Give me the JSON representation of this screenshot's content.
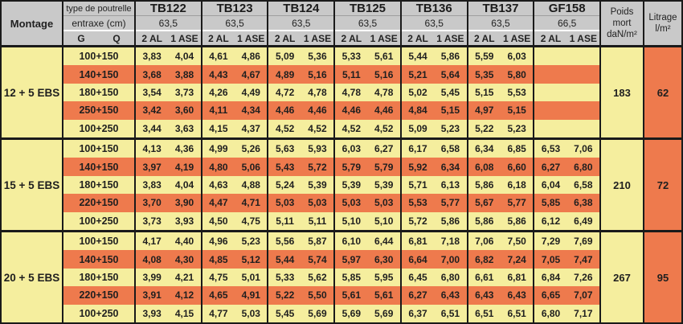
{
  "header": {
    "montage": "Montage",
    "type_poutrelle": "type de poutrelle",
    "entraxe": "entraxe (cm)",
    "g": "G",
    "q": "Q",
    "col_2al": "2 AL",
    "col_1ase": "1 ASE",
    "poids_lines": [
      "Poids",
      "mort",
      "daN/m²"
    ],
    "litrage_lines": [
      "Litrage",
      "l/m²"
    ]
  },
  "beams": [
    {
      "name": "TB122",
      "entraxe": "63,5"
    },
    {
      "name": "TB123",
      "entraxe": "63,5"
    },
    {
      "name": "TB124",
      "entraxe": "63,5"
    },
    {
      "name": "TB125",
      "entraxe": "63,5"
    },
    {
      "name": "TB136",
      "entraxe": "63,5"
    },
    {
      "name": "TB137",
      "entraxe": "63,5"
    },
    {
      "name": "GF158",
      "entraxe": "66,5"
    }
  ],
  "blocks": [
    {
      "montage": "12 + 5 EBS",
      "poids": "183",
      "litrage": "62",
      "rows": [
        {
          "gq": "100+150",
          "values": [
            "3,83",
            "4,04",
            "4,61",
            "4,86",
            "5,09",
            "5,36",
            "5,33",
            "5,61",
            "5,44",
            "5,86",
            "5,59",
            "6,03",
            "",
            ""
          ]
        },
        {
          "gq": "140+150",
          "values": [
            "3,68",
            "3,88",
            "4,43",
            "4,67",
            "4,89",
            "5,16",
            "5,11",
            "5,16",
            "5,21",
            "5,64",
            "5,35",
            "5,80",
            "",
            ""
          ]
        },
        {
          "gq": "180+150",
          "values": [
            "3,54",
            "3,73",
            "4,26",
            "4,49",
            "4,72",
            "4,78",
            "4,78",
            "4,78",
            "5,02",
            "5,45",
            "5,15",
            "5,53",
            "",
            ""
          ]
        },
        {
          "gq": "250+150",
          "values": [
            "3,42",
            "3,60",
            "4,11",
            "4,34",
            "4,46",
            "4,46",
            "4,46",
            "4,46",
            "4,84",
            "5,15",
            "4,97",
            "5,15",
            "",
            ""
          ]
        },
        {
          "gq": "100+250",
          "values": [
            "3,44",
            "3,63",
            "4,15",
            "4,37",
            "4,52",
            "4,52",
            "4,52",
            "4,52",
            "5,09",
            "5,23",
            "5,22",
            "5,23",
            "",
            ""
          ]
        }
      ]
    },
    {
      "montage": "15 + 5 EBS",
      "poids": "210",
      "litrage": "72",
      "rows": [
        {
          "gq": "100+150",
          "values": [
            "4,13",
            "4,36",
            "4,99",
            "5,26",
            "5,63",
            "5,93",
            "6,03",
            "6,27",
            "6,17",
            "6,58",
            "6,34",
            "6,85",
            "6,53",
            "7,06"
          ]
        },
        {
          "gq": "140+150",
          "values": [
            "3,97",
            "4,19",
            "4,80",
            "5,06",
            "5,43",
            "5,72",
            "5,79",
            "5,79",
            "5,92",
            "6,34",
            "6,08",
            "6,60",
            "6,27",
            "6,80"
          ]
        },
        {
          "gq": "180+150",
          "values": [
            "3,83",
            "4,04",
            "4,63",
            "4,88",
            "5,24",
            "5,39",
            "5,39",
            "5,39",
            "5,71",
            "6,13",
            "5,86",
            "6,18",
            "6,04",
            "6,58"
          ]
        },
        {
          "gq": "220+150",
          "values": [
            "3,70",
            "3,90",
            "4,47",
            "4,71",
            "5,03",
            "5,03",
            "5,03",
            "5,03",
            "5,53",
            "5,77",
            "5,67",
            "5,77",
            "5,85",
            "6,38"
          ]
        },
        {
          "gq": "100+250",
          "values": [
            "3,73",
            "3,93",
            "4,50",
            "4,75",
            "5,11",
            "5,11",
            "5,10",
            "5,10",
            "5,72",
            "5,86",
            "5,86",
            "5,86",
            "6,12",
            "6,49"
          ]
        }
      ]
    },
    {
      "montage": "20 + 5 EBS",
      "poids": "267",
      "litrage": "95",
      "rows": [
        {
          "gq": "100+150",
          "values": [
            "4,17",
            "4,40",
            "4,96",
            "5,23",
            "5,56",
            "5,87",
            "6,10",
            "6,44",
            "6,81",
            "7,18",
            "7,06",
            "7,50",
            "7,29",
            "7,69"
          ]
        },
        {
          "gq": "140+150",
          "values": [
            "4,08",
            "4,30",
            "4,85",
            "5,12",
            "5,44",
            "5,74",
            "5,97",
            "6,30",
            "6,64",
            "7,00",
            "6,82",
            "7,24",
            "7,05",
            "7,47"
          ]
        },
        {
          "gq": "180+150",
          "values": [
            "3,99",
            "4,21",
            "4,75",
            "5,01",
            "5,33",
            "5,62",
            "5,85",
            "5,95",
            "6,45",
            "6,80",
            "6,61",
            "6,81",
            "6,84",
            "7,26"
          ]
        },
        {
          "gq": "220+150",
          "values": [
            "3,91",
            "4,12",
            "4,65",
            "4,91",
            "5,22",
            "5,50",
            "5,61",
            "5,61",
            "6,27",
            "6,43",
            "6,43",
            "6,43",
            "6,65",
            "7,07"
          ]
        },
        {
          "gq": "100+250",
          "values": [
            "3,93",
            "4,15",
            "4,77",
            "5,03",
            "5,45",
            "5,69",
            "5,69",
            "5,69",
            "6,37",
            "6,51",
            "6,51",
            "6,51",
            "6,80",
            "7,17"
          ]
        }
      ]
    }
  ],
  "colors": {
    "yellow": "#f5ee9e",
    "orange": "#ee7a4d",
    "header_gray": "#c9c9c9",
    "border": "#1a1a1a"
  }
}
